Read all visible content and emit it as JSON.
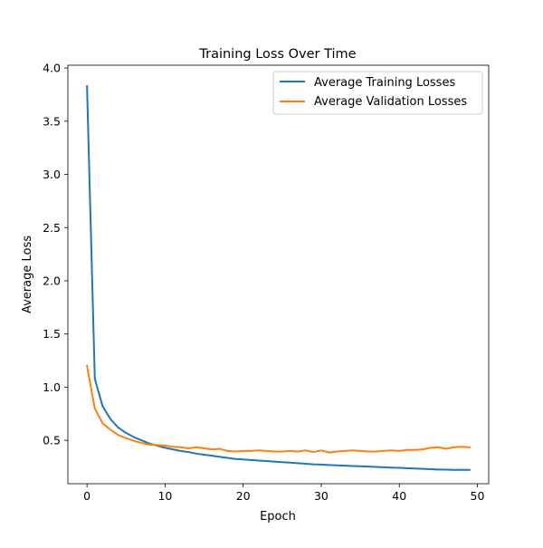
{
  "chart_data": {
    "type": "line",
    "title": "Training Loss Over Time",
    "xlabel": "Epoch",
    "ylabel": "Average Loss",
    "xlim": [
      -2.45,
      51.45
    ],
    "ylim": [
      0.0925,
      4.0265
    ],
    "xticks": [
      0,
      10,
      20,
      30,
      40,
      50
    ],
    "xtick_labels": [
      "0",
      "10",
      "20",
      "30",
      "40",
      "50"
    ],
    "yticks": [
      0.5,
      1.0,
      1.5,
      2.0,
      2.5,
      3.0,
      3.5,
      4.0
    ],
    "ytick_labels": [
      "0.5",
      "1.0",
      "1.5",
      "2.0",
      "2.5",
      "3.0",
      "3.5",
      "4.0"
    ],
    "grid": false,
    "legend_position": "top-right",
    "x": [
      0,
      1,
      2,
      3,
      4,
      5,
      6,
      7,
      8,
      9,
      10,
      11,
      12,
      13,
      14,
      15,
      16,
      17,
      18,
      19,
      20,
      21,
      22,
      23,
      24,
      25,
      26,
      27,
      28,
      29,
      30,
      31,
      32,
      33,
      34,
      35,
      36,
      37,
      38,
      39,
      40,
      41,
      42,
      43,
      44,
      45,
      46,
      47,
      48,
      49
    ],
    "series": [
      {
        "name": "Average Training Losses",
        "color": "#1f77b4",
        "values": [
          3.83,
          1.08,
          0.82,
          0.7,
          0.62,
          0.57,
          0.53,
          0.5,
          0.47,
          0.45,
          0.43,
          0.415,
          0.4,
          0.39,
          0.375,
          0.365,
          0.355,
          0.345,
          0.335,
          0.325,
          0.32,
          0.315,
          0.31,
          0.305,
          0.3,
          0.295,
          0.29,
          0.285,
          0.28,
          0.275,
          0.272,
          0.268,
          0.265,
          0.262,
          0.259,
          0.256,
          0.253,
          0.25,
          0.247,
          0.244,
          0.241,
          0.238,
          0.235,
          0.232,
          0.229,
          0.226,
          0.224,
          0.222,
          0.222,
          0.222
        ]
      },
      {
        "name": "Average Validation Losses",
        "color": "#ff7f0e",
        "values": [
          1.2,
          0.8,
          0.66,
          0.6,
          0.55,
          0.52,
          0.495,
          0.475,
          0.46,
          0.455,
          0.45,
          0.44,
          0.435,
          0.425,
          0.435,
          0.425,
          0.415,
          0.42,
          0.4,
          0.395,
          0.4,
          0.4,
          0.405,
          0.4,
          0.395,
          0.395,
          0.4,
          0.395,
          0.405,
          0.39,
          0.405,
          0.385,
          0.395,
          0.4,
          0.405,
          0.4,
          0.395,
          0.395,
          0.4,
          0.405,
          0.4,
          0.41,
          0.41,
          0.415,
          0.43,
          0.435,
          0.42,
          0.435,
          0.44,
          0.435
        ]
      }
    ]
  }
}
